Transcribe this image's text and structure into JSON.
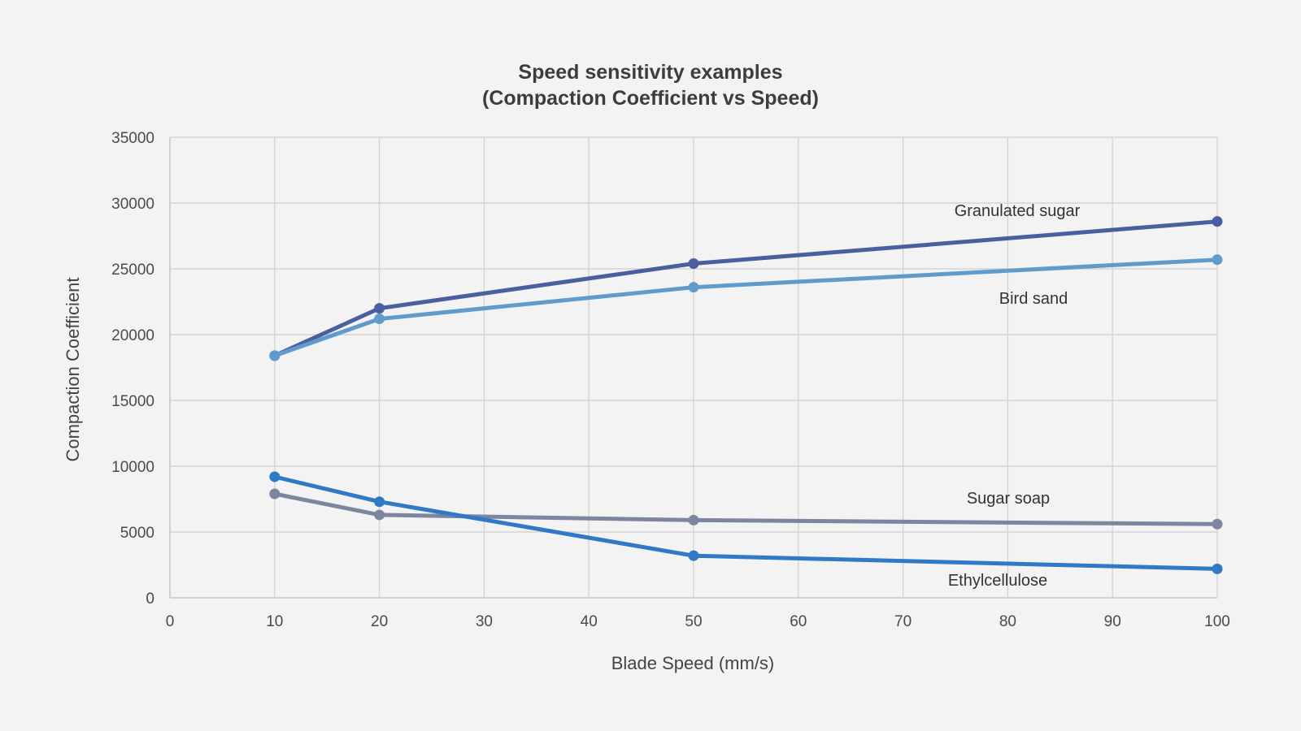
{
  "chart_data": {
    "type": "line",
    "title_lines": [
      "Speed sensitivity examples",
      "(Compaction Coefficient vs Speed)"
    ],
    "xlabel": "Blade Speed (mm/s)",
    "ylabel": "Compaction Coefficient",
    "xlim": [
      0,
      100
    ],
    "ylim": [
      0,
      35000
    ],
    "x_ticks": [
      "0",
      "10",
      "20",
      "30",
      "40",
      "50",
      "60",
      "70",
      "80",
      "90",
      "100"
    ],
    "y_ticks": [
      "0",
      "5000",
      "10000",
      "15000",
      "20000",
      "25000",
      "30000",
      "35000"
    ],
    "grid": true,
    "x": [
      10,
      20,
      50,
      100
    ],
    "series": [
      {
        "name": "Granulated sugar",
        "color": "#4a5fa0",
        "values": [
          18400,
          22000,
          25400,
          28600
        ]
      },
      {
        "name": "Bird sand",
        "color": "#5f9ccb",
        "values": [
          18400,
          21200,
          23600,
          25700
        ]
      },
      {
        "name": "Sugar soap",
        "color": "#7c879f",
        "values": [
          7900,
          6300,
          5900,
          5600
        ]
      },
      {
        "name": "Ethylcellulose",
        "color": "#2f79c6",
        "values": [
          9200,
          7300,
          3200,
          2200
        ]
      }
    ]
  }
}
